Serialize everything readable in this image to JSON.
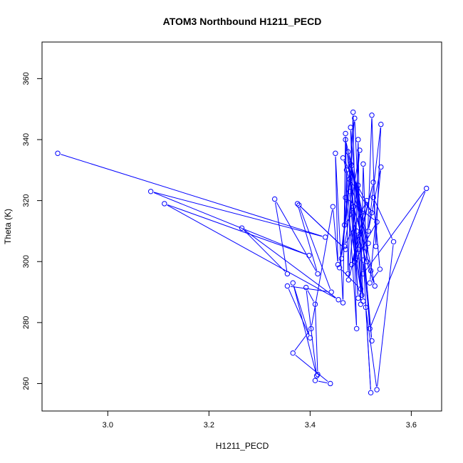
{
  "chart_data": {
    "type": "line",
    "title": "ATOM3 Northbound H1211_PECD",
    "xlabel": "H1211_PECD",
    "ylabel": "Theta (K)",
    "xlim": [
      2.87,
      3.66
    ],
    "ylim": [
      251,
      372
    ],
    "x_ticks": [
      3.0,
      3.2,
      3.4,
      3.6
    ],
    "x_tick_labels": [
      "3.0",
      "3.2",
      "3.4",
      "3.6"
    ],
    "y_ticks": [
      260,
      280,
      300,
      320,
      340,
      360
    ],
    "y_tick_labels": [
      "260",
      "280",
      "300",
      "320",
      "340",
      "360"
    ],
    "grid": false,
    "marker": "open-circle",
    "series": [
      {
        "color": "#0000ff",
        "points": [
          [
            2.901,
            335.5
          ],
          [
            3.43,
            308.0
          ],
          [
            3.085,
            323.0
          ],
          [
            3.398,
            302.0
          ],
          [
            3.112,
            319.0
          ],
          [
            3.456,
            287.5
          ],
          [
            3.265,
            311.0
          ],
          [
            3.355,
            296.0
          ],
          [
            3.33,
            320.5
          ],
          [
            3.415,
            296.0
          ],
          [
            3.375,
            319.0
          ],
          [
            3.47,
            304.0
          ],
          [
            3.378,
            318.5
          ],
          [
            3.442,
            290.0
          ],
          [
            3.355,
            292.0
          ],
          [
            3.4,
            275.0
          ],
          [
            3.366,
            293.0
          ],
          [
            3.413,
            262.5
          ],
          [
            3.392,
            291.5
          ],
          [
            3.41,
            286.0
          ],
          [
            3.415,
            263.0
          ],
          [
            3.41,
            261.0
          ],
          [
            3.44,
            260.0
          ],
          [
            3.366,
            270.0
          ],
          [
            3.402,
            278.0
          ],
          [
            3.445,
            318.0
          ],
          [
            3.455,
            299.0
          ],
          [
            3.45,
            335.5
          ],
          [
            3.465,
            286.5
          ],
          [
            3.47,
            342.0
          ],
          [
            3.475,
            296.0
          ],
          [
            3.485,
            349.0
          ],
          [
            3.49,
            301.0
          ],
          [
            3.495,
            340.0
          ],
          [
            3.5,
            286.0
          ],
          [
            3.505,
            332.0
          ],
          [
            3.512,
            300.0
          ],
          [
            3.522,
            348.0
          ],
          [
            3.53,
            305.0
          ],
          [
            3.54,
            345.0
          ],
          [
            3.515,
            310.0
          ],
          [
            3.54,
            331.0
          ],
          [
            3.518,
            293.0
          ],
          [
            3.538,
            297.5
          ],
          [
            3.525,
            321.0
          ],
          [
            3.565,
            306.5
          ],
          [
            3.532,
            258.0
          ],
          [
            3.51,
            285.0
          ],
          [
            3.52,
            257.0
          ],
          [
            3.505,
            300.5
          ],
          [
            3.522,
            274.0
          ],
          [
            3.495,
            325.0
          ],
          [
            3.518,
            278.0
          ],
          [
            3.63,
            324.0
          ],
          [
            3.505,
            296.0
          ],
          [
            3.48,
            344.0
          ],
          [
            3.492,
            278.0
          ],
          [
            3.472,
            330.0
          ],
          [
            3.468,
            312.0
          ],
          [
            3.485,
            316.0
          ],
          [
            3.495,
            288.0
          ],
          [
            3.478,
            323.0
          ],
          [
            3.5,
            291.0
          ],
          [
            3.458,
            298.0
          ],
          [
            3.482,
            331.5
          ],
          [
            3.462,
            301.0
          ],
          [
            3.488,
            347.0
          ],
          [
            3.505,
            287.0
          ],
          [
            3.475,
            336.0
          ],
          [
            3.515,
            306.0
          ],
          [
            3.465,
            334.0
          ],
          [
            3.522,
            316.0
          ],
          [
            3.478,
            327.0
          ],
          [
            3.495,
            304.0
          ],
          [
            3.47,
            340.0
          ],
          [
            3.505,
            315.0
          ],
          [
            3.482,
            299.0
          ],
          [
            3.512,
            320.0
          ],
          [
            3.468,
            305.0
          ],
          [
            3.498,
            336.5
          ],
          [
            3.476,
            294.0
          ],
          [
            3.525,
            326.0
          ],
          [
            3.488,
            300.0
          ],
          [
            3.532,
            313.0
          ],
          [
            3.47,
            321.0
          ],
          [
            3.502,
            289.0
          ],
          [
            3.492,
            310.0
          ],
          [
            3.528,
            292.0
          ],
          [
            3.48,
            332.0
          ],
          [
            3.51,
            304.5
          ],
          [
            3.486,
            318.0
          ],
          [
            3.52,
            297.0
          ]
        ]
      }
    ]
  }
}
